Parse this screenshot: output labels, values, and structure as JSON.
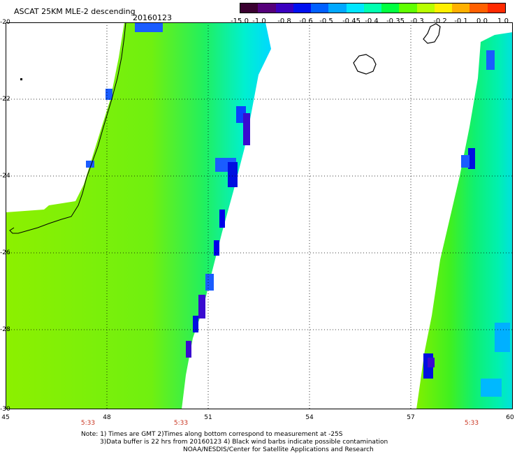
{
  "header": {
    "title": "ASCAT 25KM MLE-2 descending",
    "date": "20160123"
  },
  "colorbar": {
    "labels": [
      "-15.0",
      "-1.0",
      "-0.8",
      "-0.6",
      "-0.5",
      "-0.45",
      "-0.4",
      "-0.35",
      "-0.3",
      "-0.2",
      "-0.1",
      "0.0",
      "1.0"
    ],
    "colors": [
      "#3a0030",
      "#55007a",
      "#3a00c0",
      "#0010f0",
      "#0060ff",
      "#00a8ff",
      "#00e6ff",
      "#00ffb0",
      "#00ff40",
      "#60ff00",
      "#b8ff00",
      "#fff000",
      "#ffb000",
      "#ff6000",
      "#ff2a00"
    ]
  },
  "map": {
    "lat_labels": [
      "-20",
      "-22",
      "-24",
      "-26",
      "-28",
      "-30"
    ],
    "lon_labels": [
      "45",
      "48",
      "51",
      "54",
      "57",
      "60"
    ],
    "times": [
      "5:33",
      "5:33",
      "5:33"
    ],
    "land_color": "#000000",
    "grid_color": "#000000"
  },
  "footer": {
    "line1": "Note: 1) Times are GMT 2)Times along bottom correspond to measurement at -25S",
    "line2": "3)Data buffer is 22 hrs from 20160123 4) Black wind barbs indicate possible contamination",
    "line3": "NOAA/NESDIS/Center for Satellite Applications and Research"
  }
}
